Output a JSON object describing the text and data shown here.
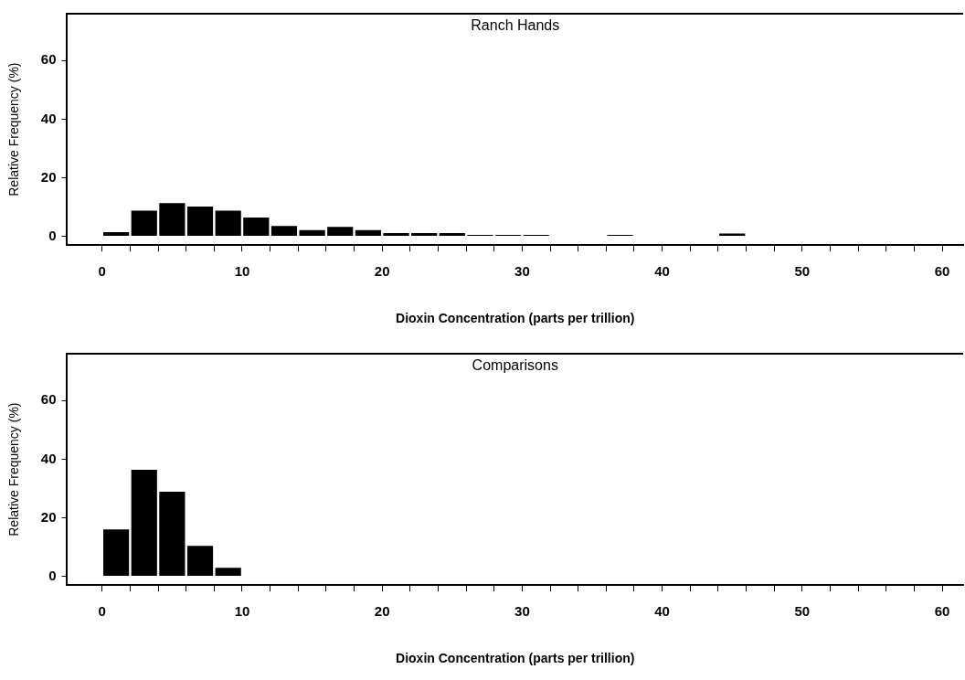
{
  "chart_data": [
    {
      "type": "histogram",
      "title": "Ranch Hands",
      "xlabel": "Dioxin Concentration (parts per trillion)",
      "ylabel": "Relative Frequency (%)",
      "color": "#000000",
      "bins": [
        0,
        2,
        4,
        6,
        8,
        10,
        12,
        14,
        16,
        18,
        20,
        22,
        24,
        26,
        28,
        30,
        32,
        34,
        36,
        38,
        40,
        42,
        44,
        46,
        48,
        50,
        52,
        54,
        56,
        58,
        60
      ],
      "values": [
        1.4,
        8.8,
        11.3,
        10.2,
        8.8,
        6.4,
        3.5,
        2.1,
        3.2,
        2.1,
        1.1,
        1.1,
        1.1,
        0.5,
        0.5,
        0.5,
        0,
        0,
        0.5,
        0,
        0,
        0,
        1,
        0,
        0,
        0,
        0,
        0,
        0,
        0
      ],
      "xlim": [
        -2.5,
        61.5
      ],
      "ylim": [
        -3,
        76
      ],
      "xticks": [
        0,
        {
          "value": 2,
          "label": null
        },
        {
          "value": 4,
          "label": null
        },
        {
          "value": 6,
          "label": null
        },
        {
          "value": 8,
          "label": null
        },
        10,
        {
          "value": 12,
          "label": null
        },
        {
          "value": 14,
          "label": null
        },
        {
          "value": 16,
          "label": null
        },
        {
          "value": 18,
          "label": null
        },
        20,
        {
          "value": 22,
          "label": null
        },
        {
          "value": 24,
          "label": null
        },
        {
          "value": 26,
          "label": null
        },
        {
          "value": 28,
          "label": null
        },
        30,
        {
          "value": 32,
          "label": null
        },
        {
          "value": 34,
          "label": null
        },
        {
          "value": 36,
          "label": null
        },
        {
          "value": 38,
          "label": null
        },
        40,
        {
          "value": 42,
          "label": null
        },
        {
          "value": 44,
          "label": null
        },
        {
          "value": 46,
          "label": null
        },
        {
          "value": 48,
          "label": null
        },
        50,
        {
          "value": 52,
          "label": null
        },
        {
          "value": 54,
          "label": null
        },
        {
          "value": 56,
          "label": null
        },
        {
          "value": 58,
          "label": null
        },
        60
      ],
      "yticks": [
        0,
        20,
        40,
        60
      ],
      "grid": false,
      "legend": false
    },
    {
      "type": "histogram",
      "title": "Comparisons",
      "xlabel": "Dioxin Concentration (parts per trillion)",
      "ylabel": "Relative Frequency (%)",
      "color": "#000000",
      "bins": [
        0,
        2,
        4,
        6,
        8,
        10,
        12,
        14,
        16,
        18,
        20,
        22,
        24,
        26,
        28,
        30,
        32,
        34,
        36,
        38,
        40,
        42,
        44,
        46,
        48,
        50,
        52,
        54,
        56,
        58,
        60
      ],
      "values": [
        16,
        36.4,
        28.9,
        10.4,
        2.9,
        0,
        0,
        0,
        0,
        0,
        0,
        0,
        0,
        0,
        0,
        0,
        0,
        0,
        0,
        0,
        0,
        0,
        0,
        0,
        0,
        0,
        0,
        0,
        0,
        0
      ],
      "xlim": [
        -2.5,
        61.5
      ],
      "ylim": [
        -3,
        76
      ],
      "xticks": [
        0,
        {
          "value": 2,
          "label": null
        },
        {
          "value": 4,
          "label": null
        },
        {
          "value": 6,
          "label": null
        },
        {
          "value": 8,
          "label": null
        },
        10,
        {
          "value": 12,
          "label": null
        },
        {
          "value": 14,
          "label": null
        },
        {
          "value": 16,
          "label": null
        },
        {
          "value": 18,
          "label": null
        },
        20,
        {
          "value": 22,
          "label": null
        },
        {
          "value": 24,
          "label": null
        },
        {
          "value": 26,
          "label": null
        },
        {
          "value": 28,
          "label": null
        },
        30,
        {
          "value": 32,
          "label": null
        },
        {
          "value": 34,
          "label": null
        },
        {
          "value": 36,
          "label": null
        },
        {
          "value": 38,
          "label": null
        },
        40,
        {
          "value": 42,
          "label": null
        },
        {
          "value": 44,
          "label": null
        },
        {
          "value": 46,
          "label": null
        },
        {
          "value": 48,
          "label": null
        },
        50,
        {
          "value": 52,
          "label": null
        },
        {
          "value": 54,
          "label": null
        },
        {
          "value": 56,
          "label": null
        },
        {
          "value": 58,
          "label": null
        },
        60
      ],
      "yticks": [
        0,
        20,
        40,
        60
      ],
      "grid": false,
      "legend": false
    }
  ]
}
